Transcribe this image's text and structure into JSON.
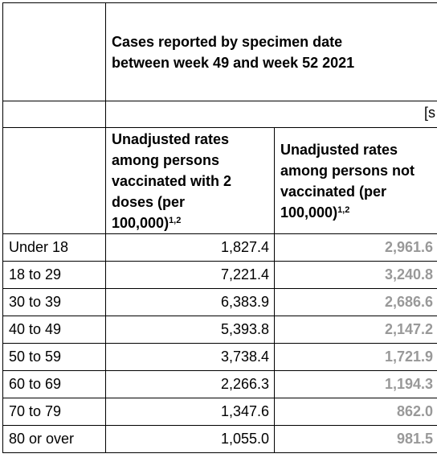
{
  "header": {
    "title_line1": "Cases reported by specimen date",
    "title_line2": "between week 49 and week 52 2021",
    "note_fragment": "[s"
  },
  "columns": {
    "vaccinated": {
      "line1": "Unadjusted rates",
      "line2": "among persons",
      "line3": "vaccinated with 2",
      "line4": "doses (per",
      "line5": "100,000)",
      "sup": "1,2"
    },
    "not_vaccinated": {
      "line1": "Unadjusted rates",
      "line2": "among persons not",
      "line3": "vaccinated (per",
      "line4": "100,000)",
      "sup": "1,2"
    }
  },
  "colors": {
    "unvaccinated_text": "#999999"
  },
  "rows": [
    {
      "age": "Under 18",
      "vaccinated": "1,827.4",
      "not_vaccinated": "2,961.6"
    },
    {
      "age": "18 to 29",
      "vaccinated": "7,221.4",
      "not_vaccinated": "3,240.8"
    },
    {
      "age": "30 to 39",
      "vaccinated": "6,383.9",
      "not_vaccinated": "2,686.6"
    },
    {
      "age": "40 to 49",
      "vaccinated": "5,393.8",
      "not_vaccinated": "2,147.2"
    },
    {
      "age": "50 to 59",
      "vaccinated": "3,738.4",
      "not_vaccinated": "1,721.9"
    },
    {
      "age": "60 to 69",
      "vaccinated": "2,266.3",
      "not_vaccinated": "1,194.3"
    },
    {
      "age": "70 to 79",
      "vaccinated": "1,347.6",
      "not_vaccinated": "862.0"
    },
    {
      "age": "80 or over",
      "vaccinated": "1,055.0",
      "not_vaccinated": "981.5"
    }
  ]
}
